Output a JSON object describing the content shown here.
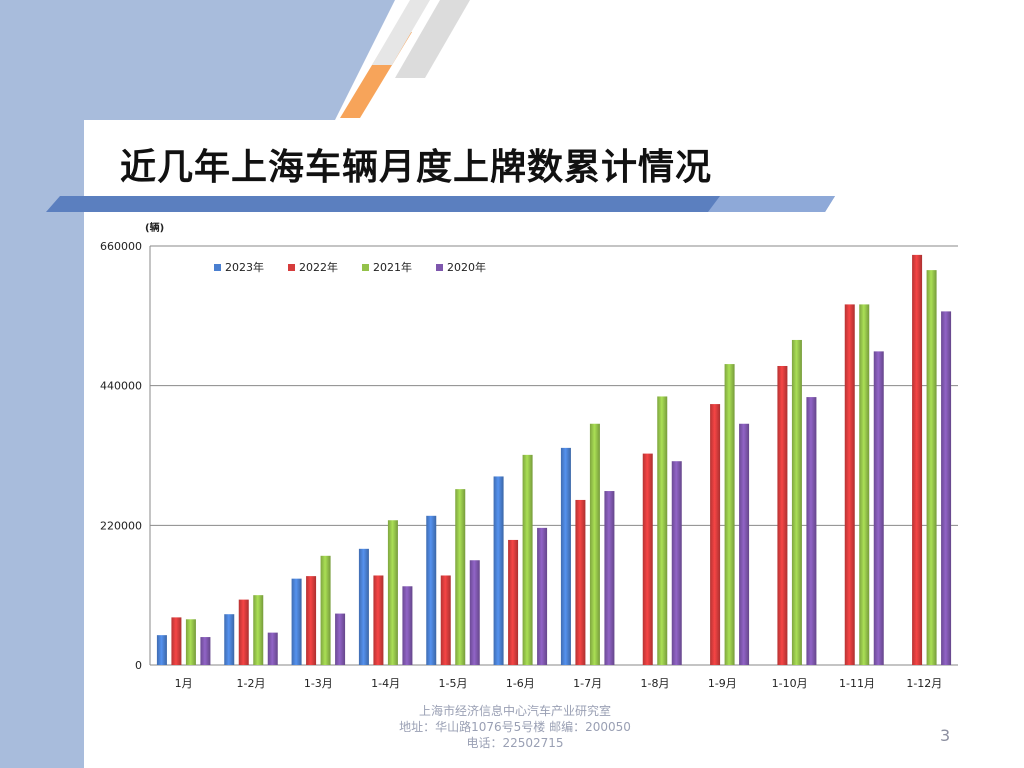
{
  "slide": {
    "title": "近几年上海车辆月度上牌数累计情况",
    "footer_line1": "上海市经济信息中心汽车产业研究室",
    "footer_line2": "地址：华山路1076号5号楼    邮编：200050",
    "footer_line3": "电话：22502715",
    "page_number": "3"
  },
  "colors": {
    "background": "#ffffff",
    "left_band": "#a8bcdc",
    "blue_bar": "#4472c4",
    "orange_stripe": "#f7a45a",
    "gray_stripe": "#d9d9d9"
  },
  "chart_data": {
    "type": "bar",
    "ylabel": "(辆)",
    "ylim": [
      0,
      660000
    ],
    "yticks": [
      "0",
      "220000",
      "440000",
      "660000"
    ],
    "grid": true,
    "legend_position": "top-left",
    "categories": [
      "1月",
      "1-2月",
      "1-3月",
      "1-4月",
      "1-5月",
      "1-6月",
      "1-7月",
      "1-8月",
      "1-9月",
      "1-10月",
      "1-11月",
      "1-12月"
    ],
    "series": [
      {
        "name": "2023年",
        "color": "#4a7fd0",
        "values": [
          47000,
          80000,
          136000,
          183000,
          235000,
          297000,
          342000,
          null,
          null,
          null,
          null,
          null
        ]
      },
      {
        "name": "2022年",
        "color": "#d63c3c",
        "values": [
          75000,
          103000,
          140000,
          141000,
          141000,
          197000,
          260000,
          333000,
          411000,
          471000,
          568000,
          646000
        ]
      },
      {
        "name": "2021年",
        "color": "#94c24a",
        "values": [
          72000,
          110000,
          172000,
          228000,
          277000,
          331000,
          380000,
          423000,
          474000,
          512000,
          568000,
          622000
        ]
      },
      {
        "name": "2020年",
        "color": "#7e57ad",
        "values": [
          44000,
          51000,
          81000,
          124000,
          165000,
          216000,
          274000,
          321000,
          380000,
          422000,
          494000,
          557000
        ]
      }
    ]
  }
}
